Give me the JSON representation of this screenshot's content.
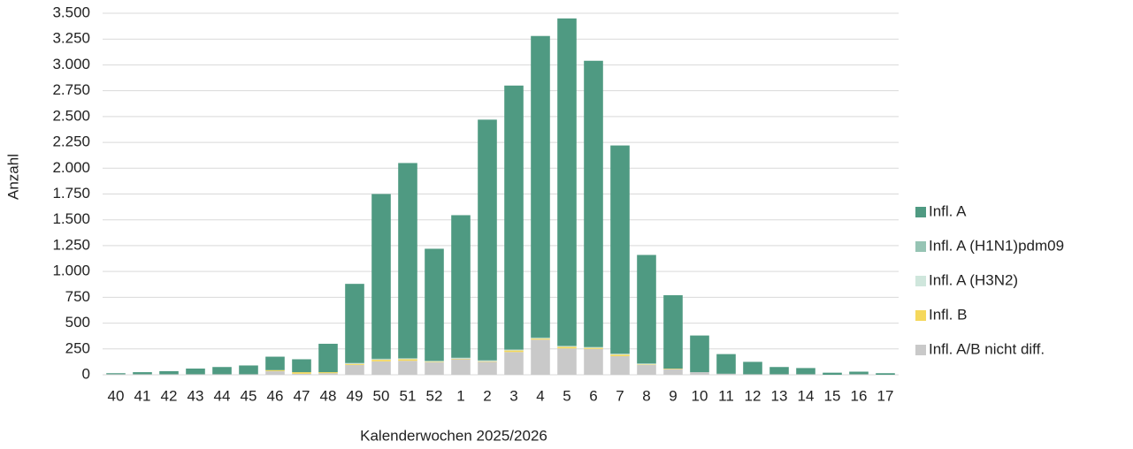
{
  "chart_data": {
    "type": "stacked-bar",
    "x_label": "Kalenderwochen 2025/2026",
    "y_label": "Anzahl",
    "categories": [
      "40",
      "41",
      "42",
      "43",
      "44",
      "45",
      "46",
      "47",
      "48",
      "49",
      "50",
      "51",
      "52",
      "1",
      "2",
      "3",
      "4",
      "5",
      "6",
      "7",
      "8",
      "9",
      "10",
      "11",
      "12",
      "13",
      "14",
      "15",
      "16",
      "17"
    ],
    "series": [
      {
        "name": "Infl. A",
        "color": "#4f9a82",
        "values": [
          10,
          20,
          30,
          55,
          70,
          85,
          130,
          125,
          275,
          765,
          1595,
          1890,
          1085,
          1380,
          2330,
          2555,
          2920,
          3170,
          2770,
          2015,
          1050,
          710,
          355,
          190,
          120,
          70,
          60,
          20,
          25,
          15
        ]
      },
      {
        "name": "Infl. A (H1N1)pdm09",
        "color": "#96c4b4",
        "values": [
          0,
          0,
          0,
          0,
          0,
          0,
          0,
          0,
          0,
          5,
          5,
          5,
          5,
          5,
          5,
          5,
          5,
          5,
          5,
          5,
          5,
          0,
          0,
          0,
          0,
          0,
          0,
          0,
          0,
          0
        ]
      },
      {
        "name": "Infl. A (H3N2)",
        "color": "#cfe6dc",
        "values": [
          0,
          0,
          0,
          0,
          0,
          0,
          0,
          0,
          0,
          5,
          5,
          5,
          5,
          5,
          5,
          5,
          5,
          5,
          5,
          5,
          5,
          0,
          0,
          0,
          0,
          0,
          0,
          0,
          0,
          0
        ]
      },
      {
        "name": "Infl. B",
        "color": "#f5d85c",
        "values": [
          0,
          0,
          0,
          0,
          0,
          0,
          10,
          15,
          10,
          10,
          15,
          15,
          5,
          5,
          5,
          15,
          10,
          15,
          10,
          15,
          5,
          5,
          0,
          0,
          0,
          0,
          0,
          0,
          0,
          0
        ]
      },
      {
        "name": "Infl. A/B nicht diff.",
        "color": "#c9c9c9",
        "values": [
          5,
          5,
          5,
          5,
          5,
          5,
          35,
          10,
          15,
          95,
          130,
          135,
          120,
          150,
          125,
          220,
          340,
          255,
          250,
          180,
          95,
          55,
          25,
          10,
          5,
          5,
          5,
          0,
          5,
          0
        ]
      }
    ],
    "ylim": [
      0,
      3500
    ],
    "yticks": [
      0,
      250,
      500,
      750,
      {
        "value": 1000,
        "label": "1.000"
      },
      {
        "value": 1250,
        "label": "1.250"
      },
      {
        "value": 1500,
        "label": "1.500"
      },
      {
        "value": 1750,
        "label": "1.750"
      },
      {
        "value": 2000,
        "label": "2.000"
      },
      {
        "value": 2250,
        "label": "2.250"
      },
      {
        "value": 2500,
        "label": "2.500"
      },
      {
        "value": 2750,
        "label": "2.750"
      },
      {
        "value": 3000,
        "label": "3.000"
      },
      {
        "value": 3250,
        "label": "3.250"
      },
      {
        "value": 3500,
        "label": "3.500"
      }
    ],
    "grid": true,
    "legend": "right"
  }
}
